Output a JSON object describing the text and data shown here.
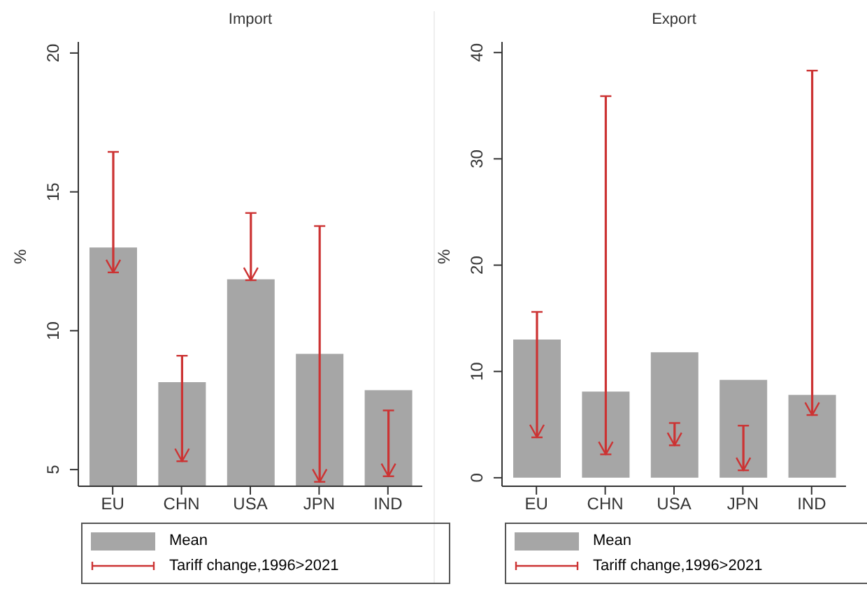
{
  "chart_data": [
    {
      "type": "bar",
      "title": "Import",
      "ylabel": "%",
      "categories": [
        "EU",
        "CHN",
        "USA",
        "JPN",
        "IND"
      ],
      "ylim": [
        4.4,
        20.4
      ],
      "yticks": [
        5,
        10,
        15,
        20
      ],
      "grid": false,
      "legend": "bottom",
      "series": [
        {
          "name": "Mean",
          "type": "bar",
          "color": "#a6a6a6",
          "values": [
            13.0,
            8.15,
            11.85,
            9.17,
            7.86
          ]
        },
        {
          "name": "Tariff change,1996>2021",
          "type": "bar",
          "color": "#cc3333",
          "base": [
            16.44,
            9.1,
            14.24,
            13.77,
            7.13
          ],
          "values": [
            -4.34,
            -3.8,
            -2.42,
            -9.21,
            -2.37
          ]
        }
      ]
    },
    {
      "type": "bar",
      "title": "Export",
      "ylabel": "%",
      "categories": [
        "EU",
        "CHN",
        "USA",
        "JPN",
        "IND"
      ],
      "ylim": [
        -0.8,
        41
      ],
      "yticks": [
        0,
        10,
        20,
        30,
        40
      ],
      "grid": false,
      "legend": "bottom",
      "series": [
        {
          "name": "Mean",
          "type": "bar",
          "color": "#a6a6a6",
          "values": [
            13.0,
            8.1,
            11.8,
            9.2,
            7.8
          ]
        },
        {
          "name": "Tariff change,1996>2021",
          "type": "bar",
          "color": "#cc3333",
          "base": [
            15.6,
            35.9,
            5.15,
            4.9,
            38.3
          ],
          "values": [
            -11.8,
            -33.7,
            -2.1,
            -4.2,
            -32.4
          ]
        }
      ]
    }
  ]
}
